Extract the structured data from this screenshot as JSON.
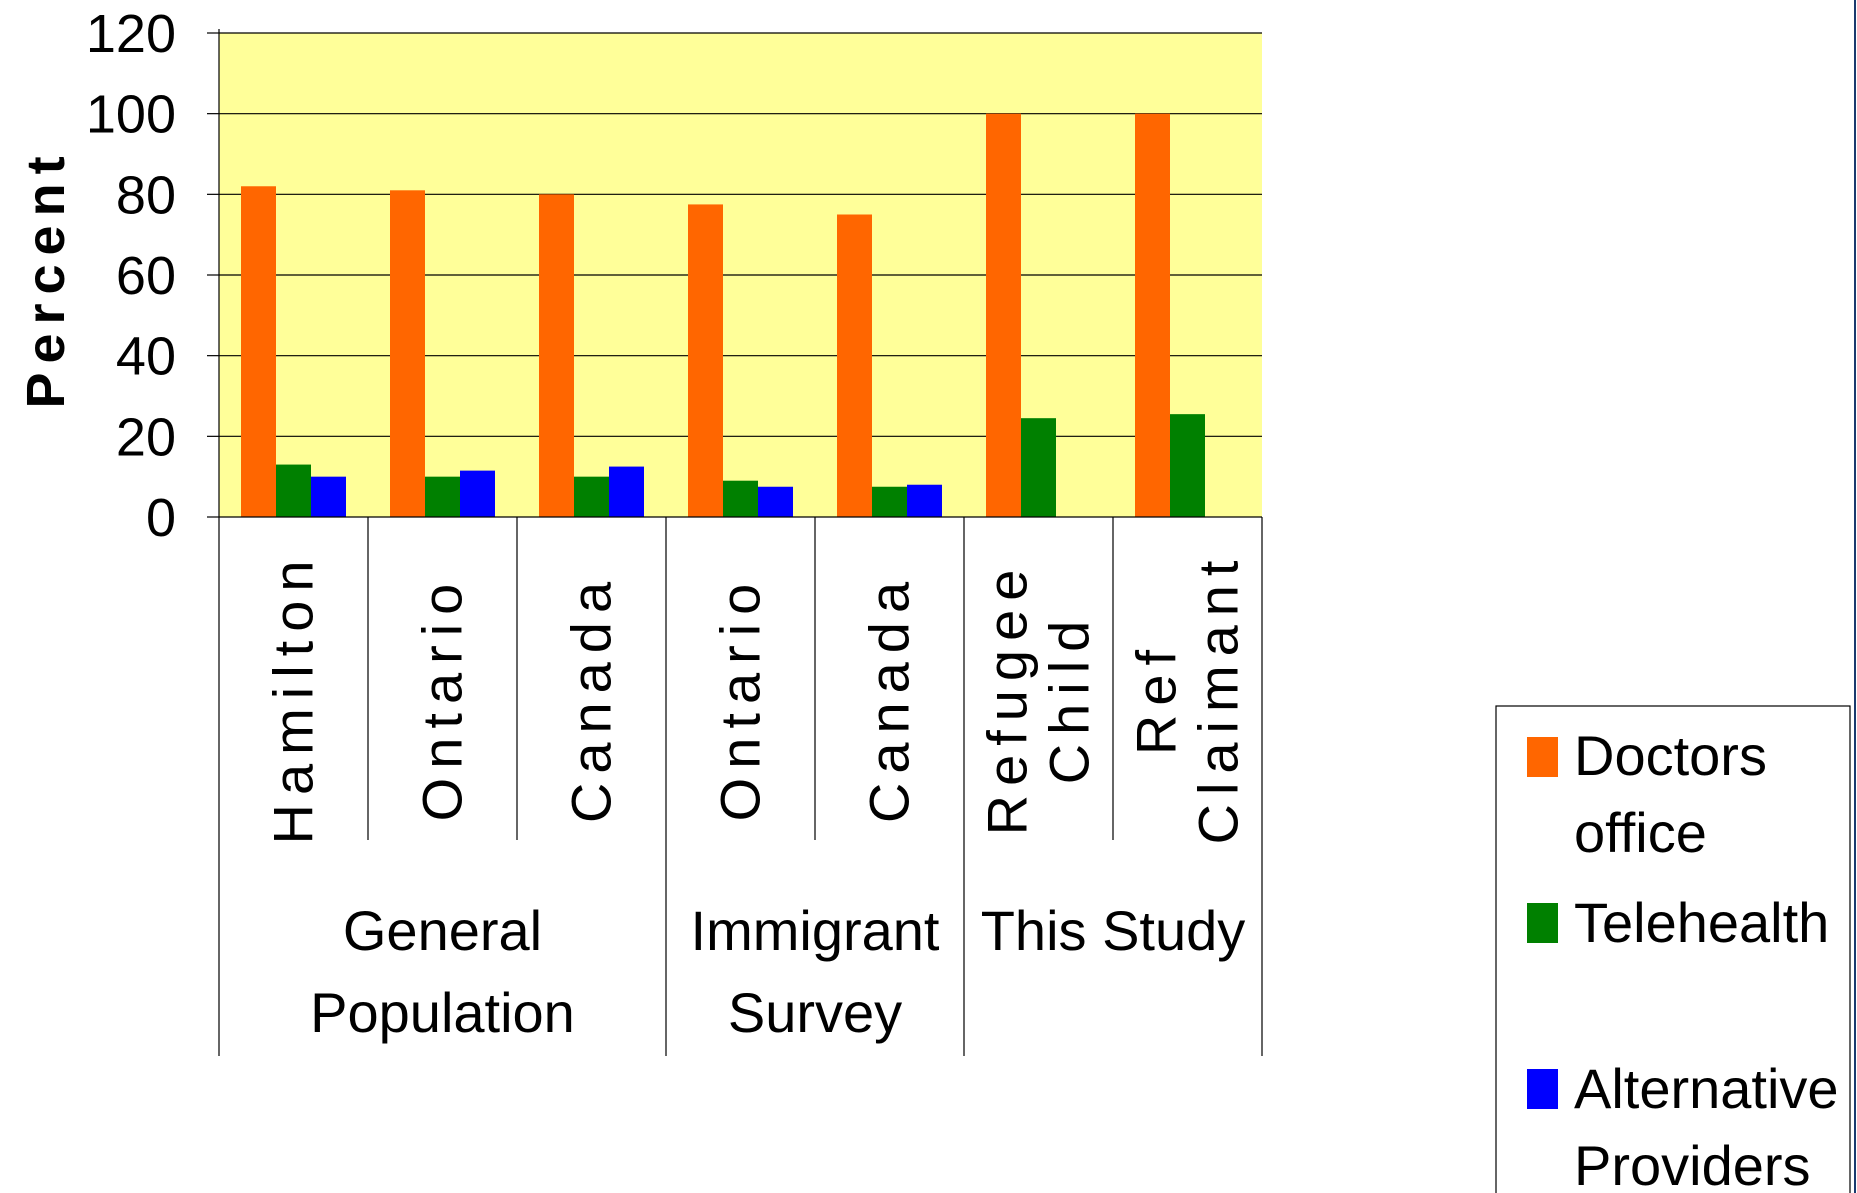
{
  "chart_data": {
    "type": "bar",
    "title": "",
    "xlabel": "",
    "ylabel": "Percent",
    "ylim": [
      0,
      120
    ],
    "yticks": [
      0,
      20,
      40,
      60,
      80,
      100,
      120
    ],
    "grid": true,
    "legend_position": "bottom-right",
    "plot_background": "#FFFF99",
    "categories": [
      "Hamilton",
      "Ontario",
      "Canada",
      "Ontario",
      "Canada",
      "Refugee Child",
      "Ref Claimant"
    ],
    "category_lines": [
      [
        "Hamilton"
      ],
      [
        "Ontario"
      ],
      [
        "Canada"
      ],
      [
        "Ontario"
      ],
      [
        "Canada"
      ],
      [
        "Refugee",
        "Child"
      ],
      [
        "Ref",
        "Claimant"
      ]
    ],
    "groups": [
      {
        "label_lines": [
          "General",
          "Population"
        ],
        "count": 3
      },
      {
        "label_lines": [
          "Immigrant",
          "Survey"
        ],
        "count": 2
      },
      {
        "label_lines": [
          "This Study"
        ],
        "count": 2
      }
    ],
    "series": [
      {
        "name": "Doctors office",
        "legend_lines": [
          "Doctors",
          "office"
        ],
        "color": "#FF6600",
        "values": [
          82,
          81,
          80,
          77.5,
          75,
          100,
          100
        ]
      },
      {
        "name": "Telehealth",
        "legend_lines": [
          "Telehealth"
        ],
        "color": "#008000",
        "values": [
          13,
          10,
          10,
          9,
          7.5,
          24.5,
          25.5
        ]
      },
      {
        "name": "Alternative Providers",
        "legend_lines": [
          "Alternative",
          "Providers"
        ],
        "color": "#0000FF",
        "values": [
          10,
          11.5,
          12.5,
          7.5,
          8,
          null,
          null
        ]
      }
    ]
  }
}
